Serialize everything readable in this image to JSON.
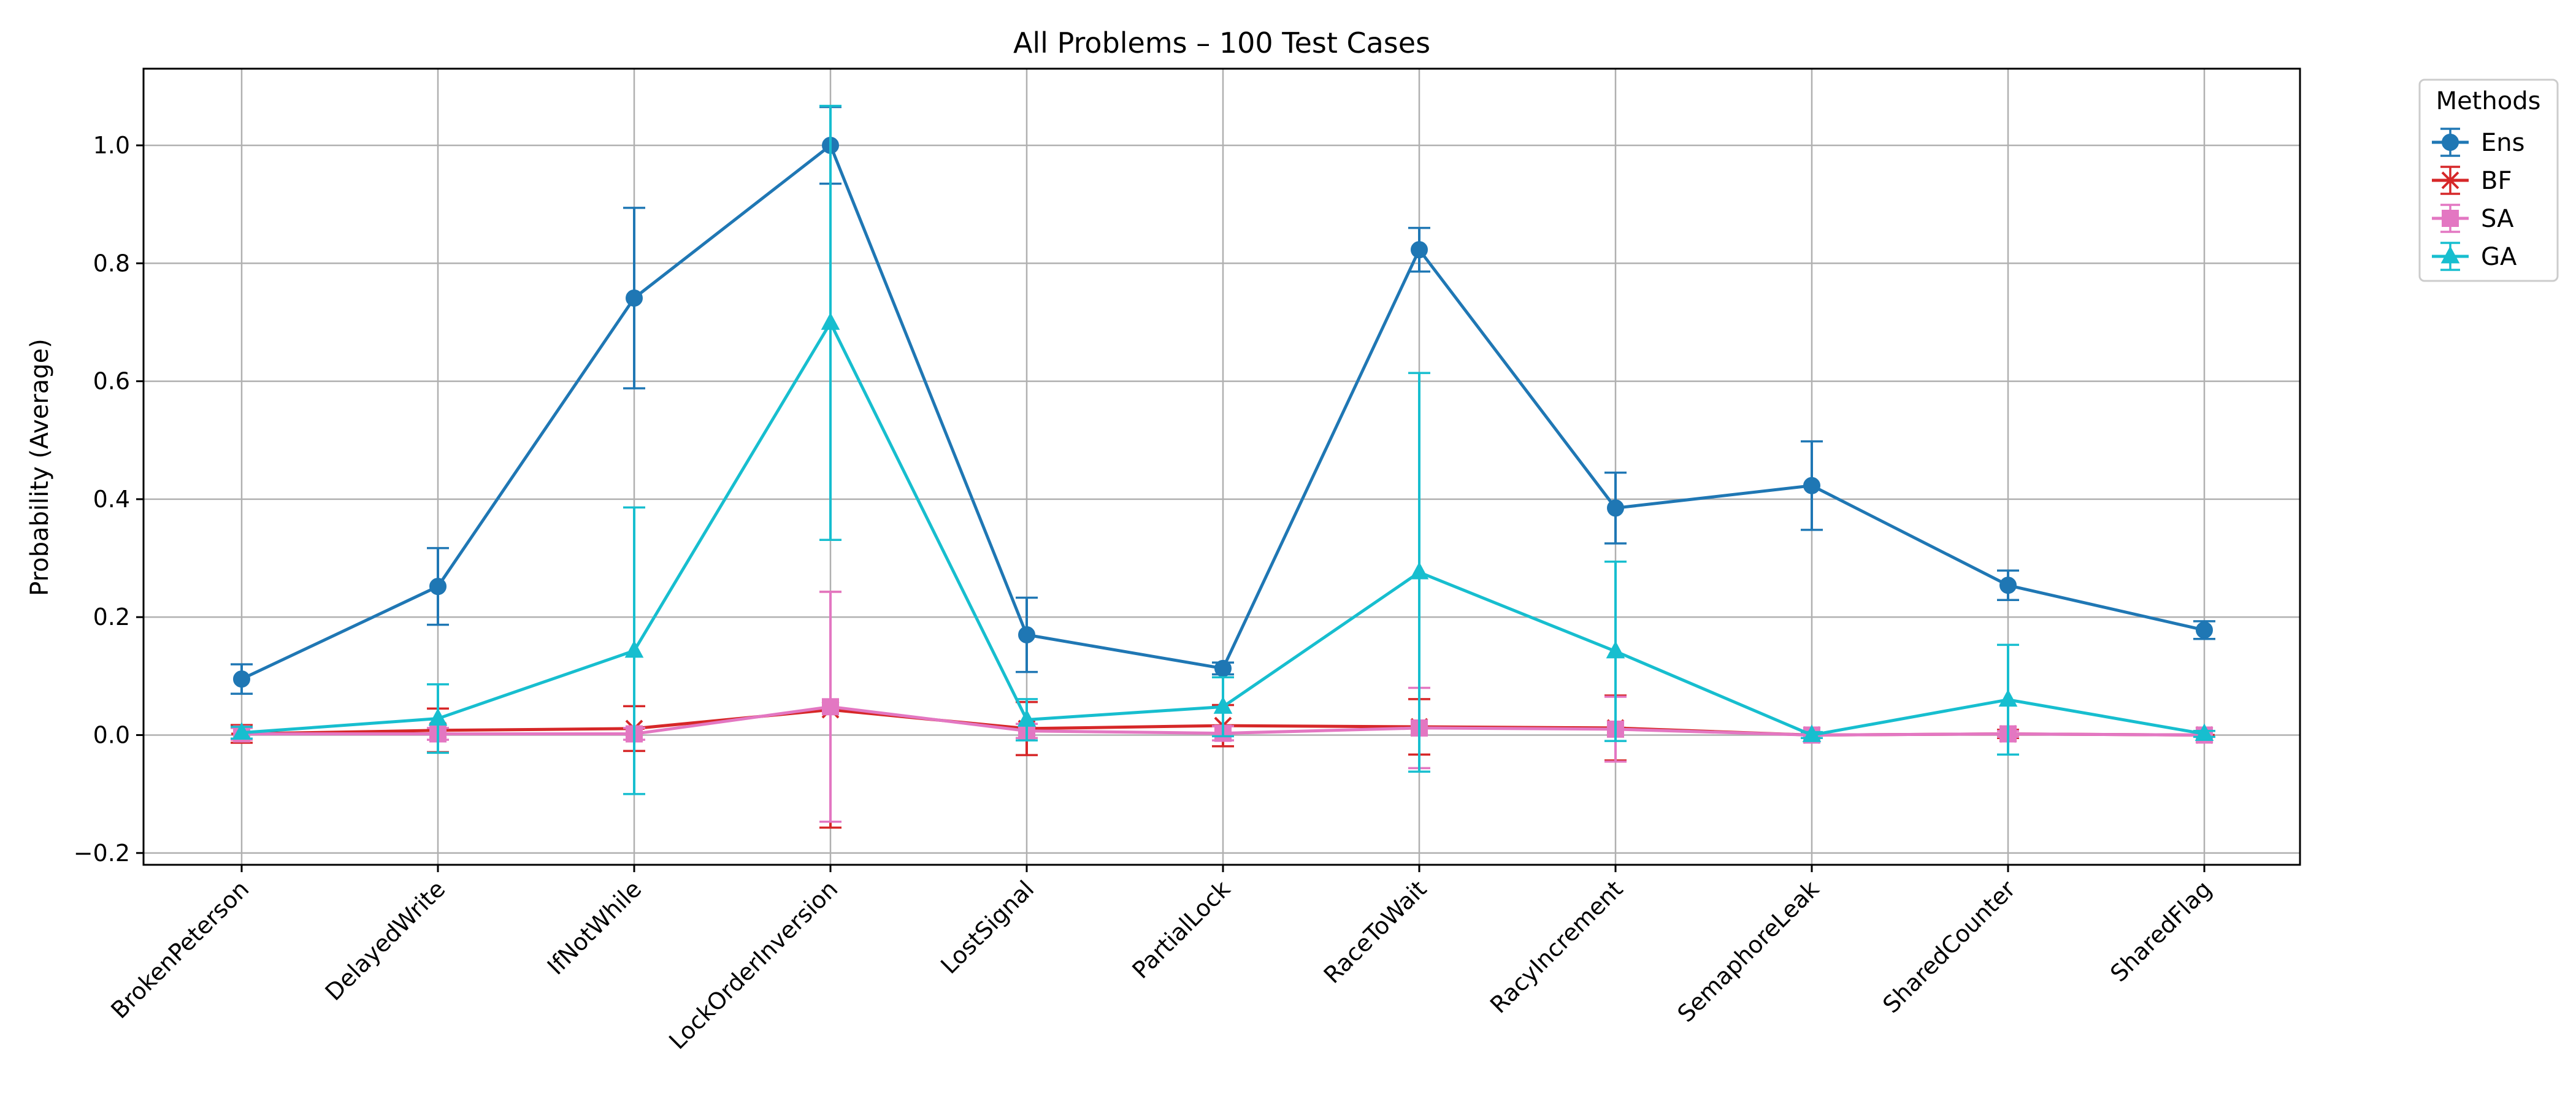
{
  "chart_data": {
    "type": "line",
    "title": "All Problems – 100 Test Cases",
    "xlabel": "",
    "ylabel": "Probability (Average)",
    "ylim": [
      -0.22,
      1.13
    ],
    "yticks": [
      -0.2,
      0.0,
      0.2,
      0.4,
      0.6,
      0.8,
      1.0
    ],
    "ytick_labels": [
      "−0.2",
      "0.0",
      "0.2",
      "0.4",
      "0.6",
      "0.8",
      "1.0"
    ],
    "grid": true,
    "legend": {
      "title": "Methods",
      "placement": "outside-top-right"
    },
    "categories": [
      "BrokenPeterson",
      "DelayedWrite",
      "IfNotWhile",
      "LockOrderInversion",
      "LostSignal",
      "PartialLock",
      "RaceToWait",
      "RacyIncrement",
      "SemaphoreLeak",
      "SharedCounter",
      "SharedFlag"
    ],
    "series": [
      {
        "name": "Ens",
        "color": "#1f77b4",
        "marker": "circle",
        "values": [
          0.095,
          0.252,
          0.741,
          1.0,
          0.17,
          0.113,
          0.823,
          0.385,
          0.423,
          0.254,
          0.178
        ],
        "errors": [
          0.025,
          0.065,
          0.153,
          0.065,
          0.063,
          0.01,
          0.037,
          0.06,
          0.075,
          0.025,
          0.015
        ]
      },
      {
        "name": "BF",
        "color": "#d62728",
        "marker": "x",
        "values": [
          0.002,
          0.008,
          0.011,
          0.043,
          0.011,
          0.016,
          0.014,
          0.012,
          0.0,
          0.002,
          0.0
        ],
        "errors": [
          0.015,
          0.037,
          0.038,
          0.2,
          0.045,
          0.035,
          0.047,
          0.055,
          0.0,
          0.007,
          0.0
        ]
      },
      {
        "name": "SA",
        "color": "#e377c2",
        "marker": "square",
        "values": [
          0.002,
          0.002,
          0.002,
          0.048,
          0.007,
          0.003,
          0.012,
          0.01,
          0.0,
          0.002,
          0.0
        ],
        "errors": [
          0.01,
          0.01,
          0.01,
          0.195,
          0.012,
          0.012,
          0.068,
          0.055,
          0.0,
          0.005,
          0.0
        ]
      },
      {
        "name": "GA",
        "color": "#17becf",
        "marker": "triangle",
        "values": [
          0.004,
          0.028,
          0.143,
          0.699,
          0.026,
          0.048,
          0.276,
          0.142,
          0.0,
          0.06,
          0.002
        ],
        "errors": [
          0.01,
          0.058,
          0.243,
          0.368,
          0.035,
          0.05,
          0.338,
          0.152,
          0.005,
          0.093,
          0.005
        ]
      }
    ]
  }
}
